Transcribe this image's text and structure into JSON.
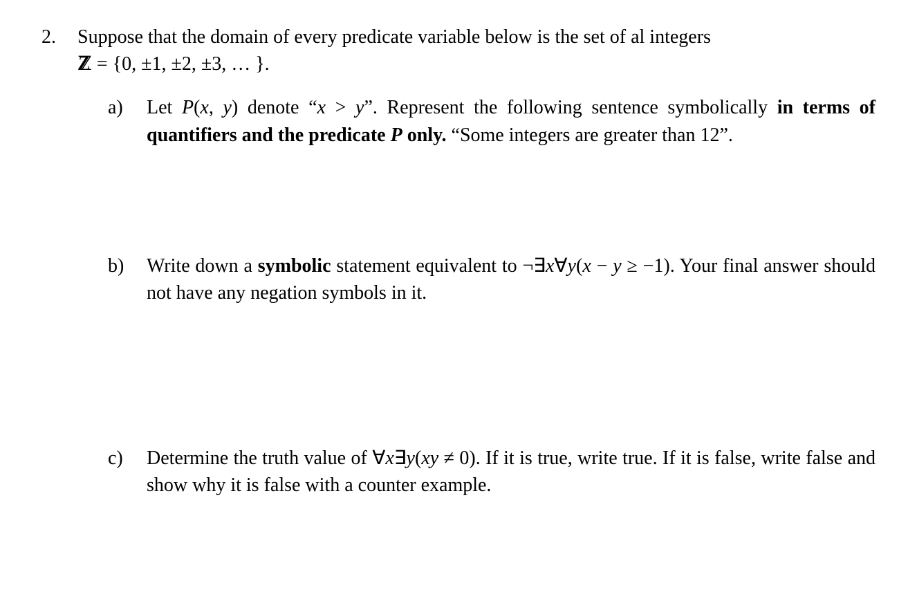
{
  "page": {
    "background_color": "#ffffff",
    "text_color": "#000000",
    "font_family": "Times New Roman",
    "base_font_size_pt": 21
  },
  "problem": {
    "number": "2.",
    "intro_line1": "Suppose that the domain of every predicate variable below is the set of al integers",
    "intro_line2_prefix": "",
    "domain_set_html": "ℤ = {0, ±1, ±2, ±3, … }.",
    "domain_set_parts": {
      "Z": "ℤ",
      "equals": " = ",
      "set": "{0, ±1, ±2, ±3, … }."
    }
  },
  "subparts": {
    "a": {
      "label": "a)",
      "text_plain": "Let P(x, y) denote \"x > y\". Represent the following sentence symbolically in terms of quantifiers and the predicate P only. \"Some integers are greater than 12\".",
      "segments": {
        "s1": "Let ",
        "P": "P",
        "paren_open": "(",
        "x": "x",
        "comma": ", ",
        "y": "y",
        "paren_close": ")",
        "s2": " denote “",
        "x2": "x",
        "gt": " > ",
        "y2": "y",
        "s3": "”. Represent the following sentence symbolically ",
        "bold": "in terms of quantifiers and the predicate ",
        "Pbold": "P",
        "bold2": " only.",
        "s4": " “Some integers are greater than 12”."
      }
    },
    "b": {
      "label": "b)",
      "text_plain": "Write down a symbolic statement equivalent to ¬∃x∀y(x − y ≥ −1). Your final answer should not have any negation symbols in it.",
      "segments": {
        "s1": "Write down a ",
        "bold1": "symbolic",
        "s2": " statement equivalent to ¬∃",
        "x": "x",
        "forall": "∀",
        "y": "y",
        "paren_open": "(",
        "x2": "x",
        "minus": " − ",
        "y2": "y",
        "geq": " ≥ −1)",
        "s3": ". Your final answer should not have any negation symbols in it."
      }
    },
    "c": {
      "label": "c)",
      "text_plain": "Determine the truth value of  ∀x∃y(xy ≠ 0). If it is true, write true. If it is false, write false and show why it is false with a counter example.",
      "segments": {
        "s1": "Determine the truth value of  ∀",
        "x": "x",
        "exists": "∃",
        "y": "y",
        "paren_open": "(",
        "xy": "xy",
        "neq": " ≠ 0)",
        "s2": ". If it is true, write true. If it is false, write false and show why it is false with a counter example."
      }
    }
  }
}
